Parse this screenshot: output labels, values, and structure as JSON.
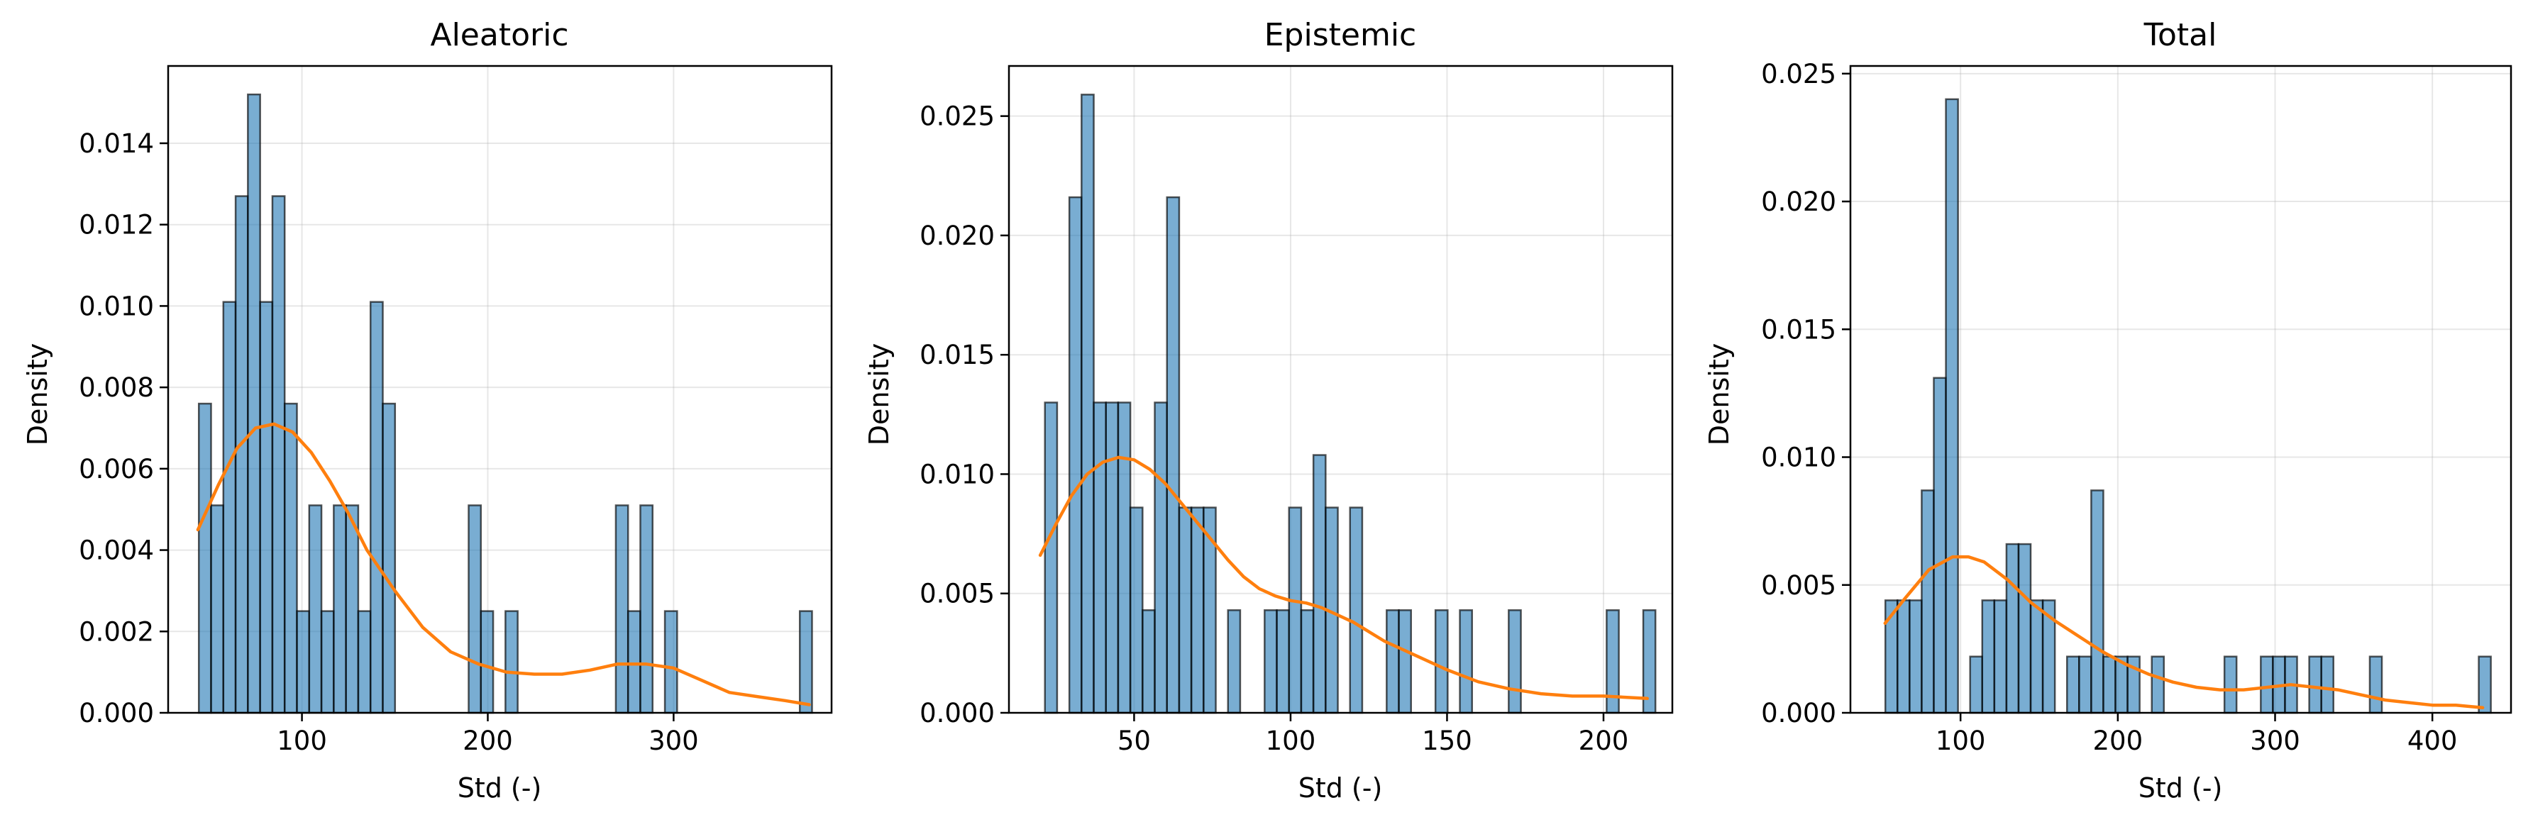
{
  "colors": {
    "bar": "#1f77b4",
    "kde": "#ff7f0e"
  },
  "chart_data": [
    {
      "type": "histogram",
      "title": "Aleatoric",
      "xlabel": "Std (-)",
      "ylabel": "Density",
      "xlim": [
        28,
        385
      ],
      "ylim": [
        0,
        0.0159
      ],
      "xticks": [
        100,
        200,
        300
      ],
      "yticks": [
        0.0,
        0.002,
        0.004,
        0.006,
        0.008,
        0.01,
        0.012,
        0.014
      ],
      "ytick_decimals": 3,
      "grid": true,
      "bin_width": 6.6,
      "bins": [
        {
          "x": 44.5,
          "h": 0.0076
        },
        {
          "x": 51.1,
          "h": 0.0051
        },
        {
          "x": 57.7,
          "h": 0.0101
        },
        {
          "x": 64.3,
          "h": 0.0127
        },
        {
          "x": 70.9,
          "h": 0.0152
        },
        {
          "x": 77.5,
          "h": 0.0101
        },
        {
          "x": 84.1,
          "h": 0.0127
        },
        {
          "x": 90.7,
          "h": 0.0076
        },
        {
          "x": 97.3,
          "h": 0.0025
        },
        {
          "x": 103.9,
          "h": 0.0051
        },
        {
          "x": 110.5,
          "h": 0.0025
        },
        {
          "x": 117.1,
          "h": 0.0051
        },
        {
          "x": 123.7,
          "h": 0.0051
        },
        {
          "x": 130.3,
          "h": 0.0025
        },
        {
          "x": 136.9,
          "h": 0.0101
        },
        {
          "x": 143.5,
          "h": 0.0076
        },
        {
          "x": 189.7,
          "h": 0.0051
        },
        {
          "x": 196.3,
          "h": 0.0025
        },
        {
          "x": 209.5,
          "h": 0.0025
        },
        {
          "x": 268.9,
          "h": 0.0051
        },
        {
          "x": 275.5,
          "h": 0.0025
        },
        {
          "x": 282.1,
          "h": 0.0051
        },
        {
          "x": 295.3,
          "h": 0.0025
        },
        {
          "x": 367.9,
          "h": 0.0025
        }
      ],
      "kde": {
        "x": [
          44,
          55,
          65,
          75,
          85,
          95,
          105,
          115,
          125,
          135,
          150,
          165,
          180,
          195,
          210,
          225,
          240,
          255,
          270,
          285,
          300,
          315,
          330,
          345,
          360,
          373
        ],
        "y": [
          0.0045,
          0.0056,
          0.0065,
          0.007,
          0.0071,
          0.0069,
          0.0064,
          0.0057,
          0.0049,
          0.004,
          0.003,
          0.0021,
          0.0015,
          0.0012,
          0.001,
          0.00095,
          0.00095,
          0.00105,
          0.0012,
          0.0012,
          0.0011,
          0.0008,
          0.0005,
          0.0004,
          0.0003,
          0.0002
        ]
      }
    },
    {
      "type": "histogram",
      "title": "Epistemic",
      "xlabel": "Std (-)",
      "ylabel": "Density",
      "xlim": [
        10,
        222
      ],
      "ylim": [
        0,
        0.0271
      ],
      "xticks": [
        50,
        100,
        150,
        200
      ],
      "yticks": [
        0.0,
        0.005,
        0.01,
        0.015,
        0.02,
        0.025
      ],
      "ytick_decimals": 3,
      "grid": true,
      "bin_width": 3.9,
      "bins": [
        {
          "x": 21.5,
          "h": 0.013
        },
        {
          "x": 29.3,
          "h": 0.0216
        },
        {
          "x": 33.2,
          "h": 0.0259
        },
        {
          "x": 37.1,
          "h": 0.013
        },
        {
          "x": 41.0,
          "h": 0.013
        },
        {
          "x": 44.9,
          "h": 0.013
        },
        {
          "x": 48.8,
          "h": 0.0086
        },
        {
          "x": 52.7,
          "h": 0.0043
        },
        {
          "x": 56.6,
          "h": 0.013
        },
        {
          "x": 60.5,
          "h": 0.0216
        },
        {
          "x": 64.4,
          "h": 0.0086
        },
        {
          "x": 68.3,
          "h": 0.0086
        },
        {
          "x": 72.2,
          "h": 0.0086
        },
        {
          "x": 80.0,
          "h": 0.0043
        },
        {
          "x": 91.7,
          "h": 0.0043
        },
        {
          "x": 95.6,
          "h": 0.0043
        },
        {
          "x": 99.5,
          "h": 0.0086
        },
        {
          "x": 103.4,
          "h": 0.0043
        },
        {
          "x": 107.3,
          "h": 0.0108
        },
        {
          "x": 111.2,
          "h": 0.0086
        },
        {
          "x": 119.0,
          "h": 0.0086
        },
        {
          "x": 130.7,
          "h": 0.0043
        },
        {
          "x": 134.6,
          "h": 0.0043
        },
        {
          "x": 146.3,
          "h": 0.0043
        },
        {
          "x": 154.1,
          "h": 0.0043
        },
        {
          "x": 169.7,
          "h": 0.0043
        },
        {
          "x": 201.0,
          "h": 0.0043
        },
        {
          "x": 212.7,
          "h": 0.0043
        }
      ],
      "kde": {
        "x": [
          20,
          25,
          30,
          35,
          40,
          45,
          50,
          55,
          60,
          65,
          70,
          75,
          80,
          85,
          90,
          95,
          100,
          105,
          110,
          115,
          120,
          125,
          130,
          140,
          150,
          160,
          170,
          180,
          190,
          200,
          214
        ],
        "y": [
          0.0066,
          0.0079,
          0.0091,
          0.01,
          0.0105,
          0.0107,
          0.0106,
          0.0102,
          0.0096,
          0.0088,
          0.008,
          0.0072,
          0.0064,
          0.0057,
          0.0052,
          0.0049,
          0.0047,
          0.0046,
          0.0044,
          0.0041,
          0.0038,
          0.0034,
          0.003,
          0.0024,
          0.0018,
          0.0013,
          0.001,
          0.0008,
          0.0007,
          0.0007,
          0.0006
        ]
      }
    },
    {
      "type": "histogram",
      "title": "Total",
      "xlabel": "Std (-)",
      "ylabel": "Density",
      "xlim": [
        30,
        450
      ],
      "ylim": [
        0,
        0.0253
      ],
      "xticks": [
        100,
        200,
        300,
        400
      ],
      "yticks": [
        0.0,
        0.005,
        0.01,
        0.015,
        0.02,
        0.025
      ],
      "ytick_decimals": 3,
      "grid": true,
      "bin_width": 7.7,
      "bins": [
        {
          "x": 52.2,
          "h": 0.0044
        },
        {
          "x": 59.9,
          "h": 0.0044
        },
        {
          "x": 67.6,
          "h": 0.0044
        },
        {
          "x": 75.3,
          "h": 0.0087
        },
        {
          "x": 83.0,
          "h": 0.0131
        },
        {
          "x": 90.7,
          "h": 0.024
        },
        {
          "x": 106.1,
          "h": 0.0022
        },
        {
          "x": 113.8,
          "h": 0.0044
        },
        {
          "x": 121.5,
          "h": 0.0044
        },
        {
          "x": 129.2,
          "h": 0.0066
        },
        {
          "x": 136.9,
          "h": 0.0066
        },
        {
          "x": 144.6,
          "h": 0.0044
        },
        {
          "x": 152.3,
          "h": 0.0044
        },
        {
          "x": 167.7,
          "h": 0.0022
        },
        {
          "x": 175.4,
          "h": 0.0022
        },
        {
          "x": 183.1,
          "h": 0.0087
        },
        {
          "x": 190.8,
          "h": 0.0022
        },
        {
          "x": 198.5,
          "h": 0.0022
        },
        {
          "x": 206.2,
          "h": 0.0022
        },
        {
          "x": 221.6,
          "h": 0.0022
        },
        {
          "x": 267.8,
          "h": 0.0022
        },
        {
          "x": 290.9,
          "h": 0.0022
        },
        {
          "x": 298.6,
          "h": 0.0022
        },
        {
          "x": 306.3,
          "h": 0.0022
        },
        {
          "x": 321.7,
          "h": 0.0022
        },
        {
          "x": 329.4,
          "h": 0.0022
        },
        {
          "x": 360.2,
          "h": 0.0022
        },
        {
          "x": 429.5,
          "h": 0.0022
        }
      ],
      "kde": {
        "x": [
          52,
          65,
          80,
          95,
          105,
          115,
          130,
          145,
          160,
          175,
          190,
          205,
          220,
          235,
          250,
          265,
          280,
          295,
          310,
          325,
          340,
          355,
          370,
          385,
          400,
          415,
          432
        ],
        "y": [
          0.0035,
          0.0045,
          0.0056,
          0.0061,
          0.0061,
          0.0059,
          0.0052,
          0.0043,
          0.0036,
          0.003,
          0.0024,
          0.0019,
          0.0015,
          0.0012,
          0.001,
          0.0009,
          0.0009,
          0.001,
          0.0011,
          0.001,
          0.0009,
          0.0007,
          0.0005,
          0.0004,
          0.0003,
          0.0003,
          0.0002
        ]
      }
    }
  ]
}
